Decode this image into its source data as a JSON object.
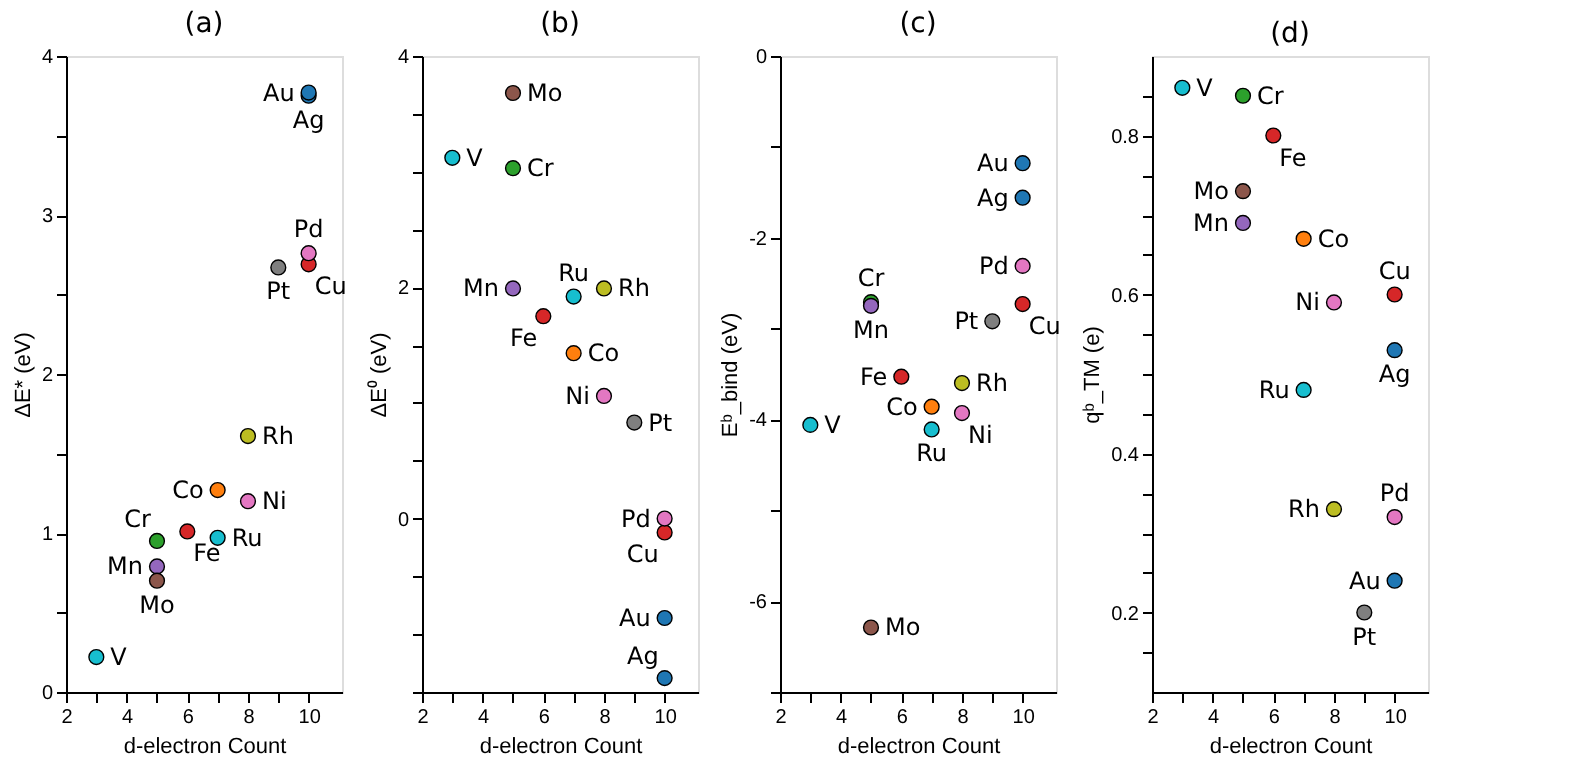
{
  "chart_data": [
    {
      "type": "scatter",
      "title": "(a)",
      "xlabel": "d-electron Count",
      "ylabel": "ΔE* (eV)",
      "marker": "circle",
      "x": [
        3,
        5,
        5,
        6,
        7,
        8,
        10,
        5,
        7,
        8,
        10,
        10,
        9,
        10
      ],
      "values": [
        0.22,
        0.95,
        0.79,
        1.01,
        1.27,
        1.2,
        2.69,
        0.7,
        0.97,
        1.61,
        2.76,
        3.75,
        2.67,
        3.77
      ],
      "colors": [
        "#17becf",
        "#2ca02c",
        "#9467bd",
        "#d62728",
        "#ff7f0e",
        "#e377c2",
        "#d62728",
        "#8c564b",
        "#17becf",
        "#bcbd22",
        "#e377c2",
        "#1f77b4",
        "#7f7f7f",
        "#1f77b4"
      ],
      "xlim": [
        2,
        11.1
      ],
      "xticks": [
        2,
        {
          "value": 3,
          "label": null
        },
        4,
        {
          "value": 5,
          "label": null
        },
        6,
        {
          "value": 7,
          "label": null
        },
        8,
        {
          "value": 9,
          "label": null
        },
        10
      ],
      "ylim": [
        0,
        4
      ],
      "yticks": [
        0,
        {
          "value": 0.5,
          "label": null
        },
        1,
        {
          "value": 1.5,
          "label": null
        },
        2,
        {
          "value": 2.5,
          "label": null
        },
        3,
        {
          "value": 3.5,
          "label": null
        },
        4
      ],
      "annotations": [
        {
          "text": "V",
          "x": 3,
          "y": 0.22
        },
        {
          "text": "Cr",
          "x": 5,
          "y": 0.95
        },
        {
          "text": "Mn",
          "x": 5,
          "y": 0.79
        },
        {
          "text": "Fe",
          "x": 6,
          "y": 1.01
        },
        {
          "text": "Co",
          "x": 7,
          "y": 1.27
        },
        {
          "text": "Ni",
          "x": 8,
          "y": 1.2
        },
        {
          "text": "Cu",
          "x": 10,
          "y": 2.69
        },
        {
          "text": "Mo",
          "x": 5,
          "y": 0.7
        },
        {
          "text": "Ru",
          "x": 7,
          "y": 0.97
        },
        {
          "text": "Rh",
          "x": 8,
          "y": 1.61
        },
        {
          "text": "Pd",
          "x": 10,
          "y": 2.76
        },
        {
          "text": "Ag",
          "x": 10,
          "y": 3.75
        },
        {
          "text": "Pt",
          "x": 9,
          "y": 2.67
        },
        {
          "text": "Au",
          "x": 10,
          "y": 3.77
        }
      ]
    },
    {
      "type": "scatter",
      "title": "(b)",
      "xlabel": "d-electron Count",
      "ylabel": "ΔE⁰ (eV)",
      "marker": "circle",
      "x": [
        3,
        5,
        5,
        6,
        7,
        8,
        10,
        5,
        7,
        8,
        10,
        10,
        9,
        10
      ],
      "values": [
        3.12,
        3.03,
        1.99,
        1.75,
        1.43,
        1.06,
        -0.12,
        3.68,
        1.92,
        1.99,
        0.0,
        -1.38,
        0.83,
        -0.86
      ],
      "colors": [
        "#17becf",
        "#2ca02c",
        "#9467bd",
        "#d62728",
        "#ff7f0e",
        "#e377c2",
        "#d62728",
        "#8c564b",
        "#17becf",
        "#bcbd22",
        "#e377c2",
        "#1f77b4",
        "#7f7f7f",
        "#1f77b4"
      ],
      "xlim": [
        2,
        11.1
      ],
      "xticks": [
        2,
        {
          "value": 3,
          "label": null
        },
        4,
        {
          "value": 5,
          "label": null
        },
        6,
        {
          "value": 7,
          "label": null
        },
        8,
        {
          "value": 9,
          "label": null
        },
        10
      ],
      "ylim": [
        -1.5,
        4
      ],
      "yticks": [
        {
          "value": -1.5,
          "label": null
        },
        {
          "value": -1,
          "label": null
        },
        {
          "value": -0.5,
          "label": null
        },
        0,
        {
          "value": 0.5,
          "label": null
        },
        {
          "value": 1,
          "label": null
        },
        {
          "value": 1.5,
          "label": null
        },
        2,
        {
          "value": 2.5,
          "label": null
        },
        {
          "value": 3,
          "label": null
        },
        {
          "value": 3.5,
          "label": null
        },
        4
      ],
      "annotations": [
        {
          "text": "V",
          "x": 3,
          "y": 3.12
        },
        {
          "text": "Cr",
          "x": 5,
          "y": 3.03
        },
        {
          "text": "Mn",
          "x": 5,
          "y": 1.99
        },
        {
          "text": "Fe",
          "x": 6,
          "y": 1.75
        },
        {
          "text": "Co",
          "x": 7,
          "y": 1.43
        },
        {
          "text": "Ni",
          "x": 8,
          "y": 1.06
        },
        {
          "text": "Cu",
          "x": 10,
          "y": -0.12
        },
        {
          "text": "Mo",
          "x": 5,
          "y": 3.68
        },
        {
          "text": "Ru",
          "x": 7,
          "y": 1.92
        },
        {
          "text": "Rh",
          "x": 8,
          "y": 1.99
        },
        {
          "text": "Pd",
          "x": 10,
          "y": 0.0
        },
        {
          "text": "Ag",
          "x": 10,
          "y": -1.38
        },
        {
          "text": "Pt",
          "x": 9,
          "y": 0.83
        },
        {
          "text": "Au",
          "x": 10,
          "y": -0.86
        }
      ]
    },
    {
      "type": "scatter",
      "title": "(c)",
      "xlabel": "d-electron Count",
      "ylabel": "Eᵇ_bind (eV)",
      "marker": "circle",
      "x": [
        3,
        5,
        5,
        6,
        7,
        8,
        10,
        5,
        7,
        8,
        10,
        10,
        9,
        10
      ],
      "values": [
        -4.06,
        -2.71,
        -2.75,
        -3.53,
        -3.86,
        -3.93,
        -2.73,
        -6.29,
        -4.11,
        -3.6,
        -2.31,
        -1.56,
        -2.92,
        -1.18
      ],
      "colors": [
        "#17becf",
        "#2ca02c",
        "#9467bd",
        "#d62728",
        "#ff7f0e",
        "#e377c2",
        "#d62728",
        "#8c564b",
        "#17becf",
        "#bcbd22",
        "#e377c2",
        "#1f77b4",
        "#7f7f7f",
        "#1f77b4"
      ],
      "xlim": [
        2,
        11.1
      ],
      "xticks": [
        2,
        {
          "value": 3,
          "label": null
        },
        4,
        {
          "value": 5,
          "label": null
        },
        6,
        {
          "value": 7,
          "label": null
        },
        8,
        {
          "value": 9,
          "label": null
        },
        10
      ],
      "ylim": [
        -7,
        0
      ],
      "yticks": [
        {
          "value": -7,
          "label": null
        },
        -6,
        {
          "value": -5,
          "label": null
        },
        -4,
        {
          "value": -3,
          "label": null
        },
        -2,
        {
          "value": -1,
          "label": null
        },
        0
      ],
      "annotations": [
        {
          "text": "V",
          "x": 3,
          "y": -4.06
        },
        {
          "text": "Cr",
          "x": 5,
          "y": -2.71
        },
        {
          "text": "Mn",
          "x": 5,
          "y": -2.75
        },
        {
          "text": "Fe",
          "x": 6,
          "y": -3.53
        },
        {
          "text": "Co",
          "x": 7,
          "y": -3.86
        },
        {
          "text": "Ni",
          "x": 8,
          "y": -3.93
        },
        {
          "text": "Cu",
          "x": 10,
          "y": -2.73
        },
        {
          "text": "Mo",
          "x": 5,
          "y": -6.29
        },
        {
          "text": "Ru",
          "x": 7,
          "y": -4.11
        },
        {
          "text": "Rh",
          "x": 8,
          "y": -3.6
        },
        {
          "text": "Pd",
          "x": 10,
          "y": -2.31
        },
        {
          "text": "Ag",
          "x": 10,
          "y": -1.56
        },
        {
          "text": "Pt",
          "x": 9,
          "y": -2.92
        },
        {
          "text": "Au",
          "x": 10,
          "y": -1.18
        }
      ]
    },
    {
      "type": "scatter",
      "title": "(d)",
      "xlabel": "d-electron Count",
      "ylabel": "qᵇ_TM (e)",
      "marker": "circle",
      "x": [
        3,
        5,
        5,
        6,
        7,
        8,
        10,
        5,
        7,
        8,
        10,
        10,
        9,
        10
      ],
      "values": [
        0.86,
        0.85,
        0.69,
        0.8,
        0.67,
        0.59,
        0.6,
        0.73,
        0.48,
        0.33,
        0.32,
        0.53,
        0.2,
        0.24
      ],
      "colors": [
        "#17becf",
        "#2ca02c",
        "#9467bd",
        "#d62728",
        "#ff7f0e",
        "#e377c2",
        "#d62728",
        "#8c564b",
        "#17becf",
        "#bcbd22",
        "#e377c2",
        "#1f77b4",
        "#7f7f7f",
        "#1f77b4"
      ],
      "xlim": [
        2,
        11.1
      ],
      "xticks": [
        2,
        {
          "value": 3,
          "label": null
        },
        4,
        {
          "value": 5,
          "label": null
        },
        6,
        {
          "value": 7,
          "label": null
        },
        8,
        {
          "value": 9,
          "label": null
        },
        10
      ],
      "ylim": [
        0.1,
        0.9
      ],
      "yticks": [
        {
          "value": 0.15,
          "label": null
        },
        0.2,
        {
          "value": 0.25,
          "label": null
        },
        {
          "value": 0.3,
          "label": null
        },
        {
          "value": 0.35,
          "label": null
        },
        0.4,
        {
          "value": 0.45,
          "label": null
        },
        {
          "value": 0.5,
          "label": null
        },
        {
          "value": 0.55,
          "label": null
        },
        0.6,
        {
          "value": 0.65,
          "label": null
        },
        {
          "value": 0.7,
          "label": null
        },
        {
          "value": 0.75,
          "label": null
        },
        0.8,
        {
          "value": 0.85,
          "label": null
        }
      ],
      "annotations": [
        {
          "text": "V",
          "x": 3,
          "y": 0.86
        },
        {
          "text": "Cr",
          "x": 5,
          "y": 0.85
        },
        {
          "text": "Mn",
          "x": 5,
          "y": 0.69
        },
        {
          "text": "Fe",
          "x": 6,
          "y": 0.8
        },
        {
          "text": "Co",
          "x": 7,
          "y": 0.67
        },
        {
          "text": "Ni",
          "x": 8,
          "y": 0.59
        },
        {
          "text": "Cu",
          "x": 10,
          "y": 0.6
        },
        {
          "text": "Mo",
          "x": 5,
          "y": 0.73
        },
        {
          "text": "Ru",
          "x": 7,
          "y": 0.48
        },
        {
          "text": "Rh",
          "x": 8,
          "y": 0.33
        },
        {
          "text": "Pd",
          "x": 10,
          "y": 0.32
        },
        {
          "text": "Ag",
          "x": 10,
          "y": 0.53
        },
        {
          "text": "Pt",
          "x": 9,
          "y": 0.2
        },
        {
          "text": "Au",
          "x": 10,
          "y": 0.24
        }
      ]
    }
  ]
}
